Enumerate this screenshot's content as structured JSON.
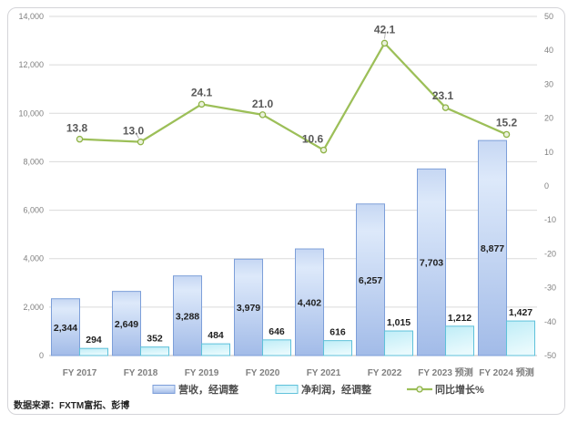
{
  "chart_data": {
    "type": "combo-bar-line",
    "title": "",
    "categories": [
      "FY 2017",
      "FY 2018",
      "FY 2019",
      "FY 2020",
      "FY 2021",
      "FY 2022",
      "FY 2023 预测",
      "FY 2024 预测"
    ],
    "series": [
      {
        "name": "营收，经调整",
        "type": "bar",
        "axis": "left",
        "values": [
          2344,
          2649,
          3288,
          3979,
          4402,
          6257,
          7703,
          8877
        ],
        "labels": [
          "2,344",
          "2,649",
          "3,288",
          "3,979",
          "4,402",
          "6,257",
          "7,703",
          "8,877"
        ]
      },
      {
        "name": "净利润，经调整",
        "type": "bar",
        "axis": "left",
        "values": [
          294,
          352,
          484,
          646,
          616,
          1015,
          1212,
          1427
        ],
        "labels": [
          "294",
          "352",
          "484",
          "646",
          "616",
          "1,015",
          "1,212",
          "1,427"
        ]
      },
      {
        "name": "同比增长%",
        "type": "line",
        "axis": "right",
        "values": [
          13.8,
          13.0,
          24.1,
          21.0,
          10.6,
          42.1,
          23.1,
          15.2
        ],
        "labels": [
          "13.8",
          "13.0",
          "24.1",
          "21.0",
          "10.6",
          "42.1",
          "23.1",
          "15.2"
        ]
      }
    ],
    "left_axis": {
      "min": 0,
      "max": 14000,
      "step": 2000,
      "tick_labels": [
        "0",
        "2,000",
        "4,000",
        "6,000",
        "8,000",
        "10,000",
        "12,000",
        "14,000"
      ]
    },
    "right_axis": {
      "min": -50,
      "max": 50,
      "step": 10,
      "tick_labels": [
        "-50",
        "-40",
        "-30",
        "-20",
        "-10",
        "0",
        "10",
        "20",
        "30",
        "40",
        "50"
      ]
    },
    "grid": "horizontal",
    "legend": {
      "position": "bottom",
      "items": [
        "营收，经调整",
        "净利润，经调整",
        "同比增长%"
      ]
    },
    "source_note": "数据来源：FXTM富拓、彭博",
    "colors": {
      "revenue_fill_top": "#c6d7f3",
      "revenue_fill_light": "#dde9fa",
      "revenue_fill_bottom": "#a2bbe8",
      "revenue_border": "#7d9fd9",
      "profit_fill_top": "#bfedf7",
      "profit_fill_bottom": "#e9fafd",
      "profit_border": "#5fc1da",
      "line": "#9cbf58",
      "marker_fill": "#ebf2dd",
      "marker_border": "#8fb347",
      "grid": "#dadada",
      "axis_line": "#bfbfbf",
      "axis_text": "#7f7f7f",
      "category_text": "#808080",
      "bar_label_text": "#1f1f1f",
      "growth_label_text": "#595959",
      "legend_text": "#4d4d4d",
      "source_text": "#262626",
      "leader_line": "#a6a6a6",
      "frame_border": "#d4d4d8"
    }
  }
}
